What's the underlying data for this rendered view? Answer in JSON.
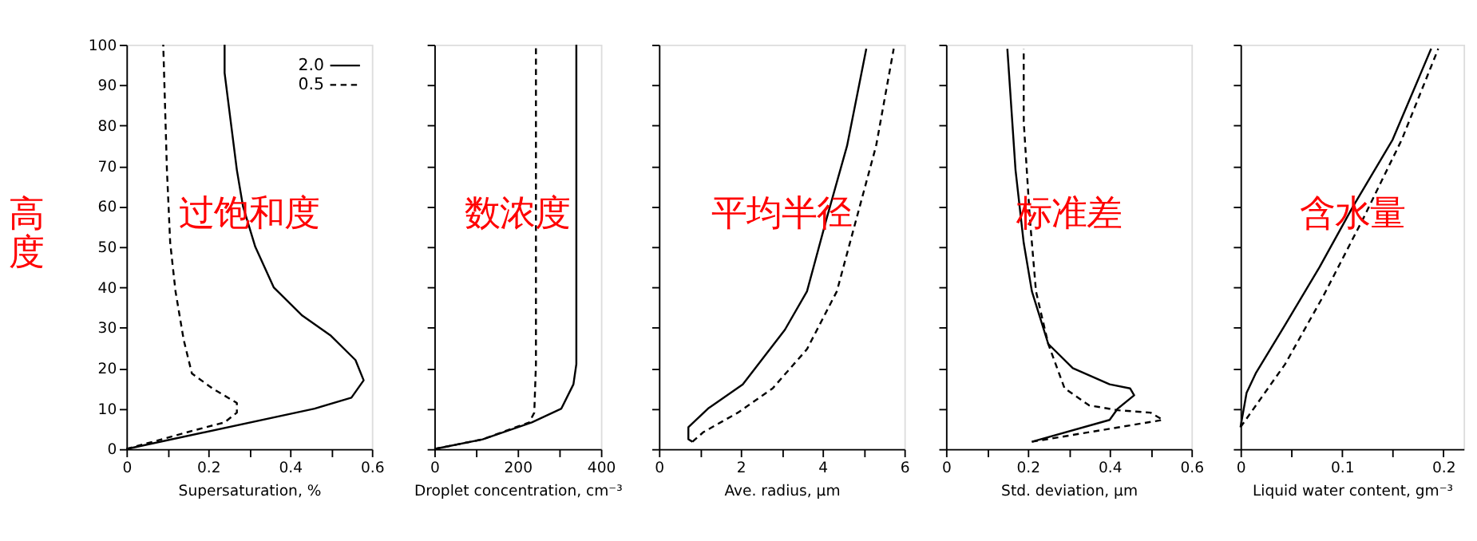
{
  "chart_data": [
    {
      "type": "line",
      "xlabel": "Supersaturation, %",
      "ylabel": "高度",
      "annotations": [
        "过饱和度"
      ],
      "xlim": [
        0,
        0.6
      ],
      "ylim": [
        0,
        100
      ],
      "xticks": [
        0,
        {
          "value": 0.1,
          "label": null
        },
        0.2,
        {
          "value": 0.3,
          "label": null
        },
        0.4,
        {
          "value": 0.5,
          "label": null
        },
        0.6
      ],
      "yticks": [
        0,
        10,
        20,
        30,
        40,
        50,
        60,
        70,
        80,
        90,
        100
      ],
      "grid": false,
      "legend": "top right",
      "series": [
        {
          "name": "2.0",
          "color": "#000000",
          "line_style": "solid",
          "x": [
            0,
            0.46,
            0.55,
            0.58,
            0.56,
            0.5,
            0.43,
            0.36,
            0.315,
            0.285,
            0.27,
            0.255,
            0.24,
            0.24
          ],
          "values": [
            0,
            10,
            12.7,
            17,
            22,
            28,
            33,
            40,
            50,
            60,
            69,
            81,
            93,
            100
          ]
        },
        {
          "name": "0.5",
          "color": "#000000",
          "line_style": "dashed",
          "x": [
            0,
            0.15,
            0.24,
            0.27,
            0.27,
            0.21,
            0.16,
            0.14,
            0.12,
            0.107,
            0.099,
            0.09
          ],
          "values": [
            0,
            4.2,
            6.6,
            9,
            11.4,
            15,
            18.7,
            27,
            39,
            51,
            69,
            100
          ]
        }
      ]
    },
    {
      "type": "line",
      "xlabel": "Droplet concentration, cm⁻³",
      "annotations": [
        "数浓度"
      ],
      "xlim": [
        0,
        400
      ],
      "ylim": [
        0,
        100
      ],
      "xticks": [
        0,
        {
          "value": 100,
          "label": null
        },
        200,
        {
          "value": 300,
          "label": null
        },
        400
      ],
      "yticks": [
        {
          "value": 0,
          "label": null
        },
        {
          "value": 10,
          "label": null
        },
        {
          "value": 20,
          "label": null
        },
        {
          "value": 30,
          "label": null
        },
        {
          "value": 40,
          "label": null
        },
        {
          "value": 50,
          "label": null
        },
        {
          "value": 60,
          "label": null
        },
        {
          "value": 70,
          "label": null
        },
        {
          "value": 80,
          "label": null
        },
        {
          "value": 90,
          "label": null
        },
        {
          "value": 100,
          "label": null
        }
      ],
      "tick_labels": "x",
      "grid": false,
      "series": [
        {
          "color": "#000000",
          "line_style": "solid",
          "x": [
            0,
            116,
            234,
            305,
            334,
            341,
            341
          ],
          "values": [
            0,
            2.4,
            6.6,
            10,
            16,
            21,
            100
          ]
        },
        {
          "color": "#000000",
          "line_style": "dashed",
          "x": [
            0,
            116,
            228,
            240,
            244,
            244
          ],
          "values": [
            0,
            2.4,
            6.6,
            9,
            21,
            100
          ]
        }
      ]
    },
    {
      "type": "line",
      "xlabel": "Ave. radius, μm",
      "annotations": [
        "平均半径"
      ],
      "xlim": [
        0,
        6
      ],
      "ylim": [
        0,
        100
      ],
      "xticks": [
        0,
        {
          "value": 1,
          "label": null
        },
        2,
        {
          "value": 3,
          "label": null
        },
        4,
        {
          "value": 5,
          "label": null
        },
        6
      ],
      "yticks": [
        {
          "value": 0,
          "label": null
        },
        {
          "value": 10,
          "label": null
        },
        {
          "value": 20,
          "label": null
        },
        {
          "value": 30,
          "label": null
        },
        {
          "value": 40,
          "label": null
        },
        {
          "value": 50,
          "label": null
        },
        {
          "value": 60,
          "label": null
        },
        {
          "value": 70,
          "label": null
        },
        {
          "value": 80,
          "label": null
        },
        {
          "value": 90,
          "label": null
        },
        {
          "value": 100,
          "label": null
        }
      ],
      "tick_labels": "x",
      "grid": false,
      "series": [
        {
          "color": "#000000",
          "line_style": "solid",
          "x": [
            0.82,
            0.72,
            0.72,
            1.2,
            2.05,
            3.08,
            3.62,
            4.1,
            4.6,
            5.07
          ],
          "values": [
            1.8,
            2.4,
            5.4,
            10,
            16,
            29.5,
            39,
            57,
            75,
            99
          ]
        },
        {
          "color": "#000000",
          "line_style": "dashed",
          "x": [
            0.82,
            1.09,
            1.93,
            2.78,
            3.62,
            4.35,
            4.83,
            5.31,
            5.74
          ],
          "values": [
            1.8,
            4.2,
            9,
            15,
            24.7,
            39,
            57,
            75,
            99
          ]
        }
      ]
    },
    {
      "type": "line",
      "xlabel": "Std. deviation, μm",
      "annotations": [
        "标准差"
      ],
      "xlim": [
        0,
        0.6
      ],
      "ylim": [
        0,
        100
      ],
      "xticks": [
        0,
        {
          "value": 0.1,
          "label": null
        },
        0.2,
        {
          "value": 0.3,
          "label": null
        },
        0.4,
        {
          "value": 0.5,
          "label": null
        },
        0.6
      ],
      "yticks": [
        {
          "value": 0,
          "label": null
        },
        {
          "value": 10,
          "label": null
        },
        {
          "value": 20,
          "label": null
        },
        {
          "value": 30,
          "label": null
        },
        {
          "value": 40,
          "label": null
        },
        {
          "value": 50,
          "label": null
        },
        {
          "value": 60,
          "label": null
        },
        {
          "value": 70,
          "label": null
        },
        {
          "value": 80,
          "label": null
        },
        {
          "value": 90,
          "label": null
        },
        {
          "value": 100,
          "label": null
        }
      ],
      "tick_labels": "x",
      "grid": false,
      "series": [
        {
          "color": "#000000",
          "line_style": "solid",
          "x": [
            0.21,
            0.4,
            0.42,
            0.46,
            0.45,
            0.4,
            0.31,
            0.25,
            0.21,
            0.19,
            0.17,
            0.15
          ],
          "values": [
            1.8,
            7.2,
            10,
            13.3,
            15,
            16,
            20,
            26,
            39,
            51,
            69,
            99
          ]
        },
        {
          "color": "#000000",
          "line_style": "dashed",
          "x": [
            0.21,
            0.53,
            0.5,
            0.42,
            0.35,
            0.29,
            0.25,
            0.22,
            0.205,
            0.19,
            0.19
          ],
          "values": [
            1.8,
            7.2,
            9,
            9.6,
            10.8,
            15,
            26,
            39,
            57,
            81,
            99
          ]
        }
      ]
    },
    {
      "type": "line",
      "xlabel": "Liquid water content, gm⁻³",
      "annotations": [
        "含水量"
      ],
      "xlim": [
        0,
        0.22
      ],
      "ylim": [
        0,
        100
      ],
      "xticks": [
        0,
        {
          "value": 0.05,
          "label": null
        },
        0.1,
        {
          "value": 0.15,
          "label": null
        },
        0.2
      ],
      "yticks": [
        {
          "value": 0,
          "label": null
        },
        {
          "value": 10,
          "label": null
        },
        {
          "value": 20,
          "label": null
        },
        {
          "value": 30,
          "label": null
        },
        {
          "value": 40,
          "label": null
        },
        {
          "value": 50,
          "label": null
        },
        {
          "value": 60,
          "label": null
        },
        {
          "value": 70,
          "label": null
        },
        {
          "value": 80,
          "label": null
        },
        {
          "value": 90,
          "label": null
        },
        {
          "value": 100,
          "label": null
        }
      ],
      "tick_labels": "x",
      "grid": false,
      "series": [
        {
          "color": "#000000",
          "line_style": "solid",
          "x": [
            0,
            0.006,
            0.015,
            0.044,
            0.078,
            0.111,
            0.15,
            0.188
          ],
          "values": [
            5.4,
            13.9,
            18.7,
            30.7,
            45,
            60,
            76.5,
            99
          ]
        },
        {
          "color": "#000000",
          "line_style": "dashed",
          "x": [
            0,
            0.044,
            0.082,
            0.121,
            0.159,
            0.195
          ],
          "values": [
            5.4,
            21,
            38,
            57,
            76.5,
            99
          ]
        }
      ]
    }
  ]
}
